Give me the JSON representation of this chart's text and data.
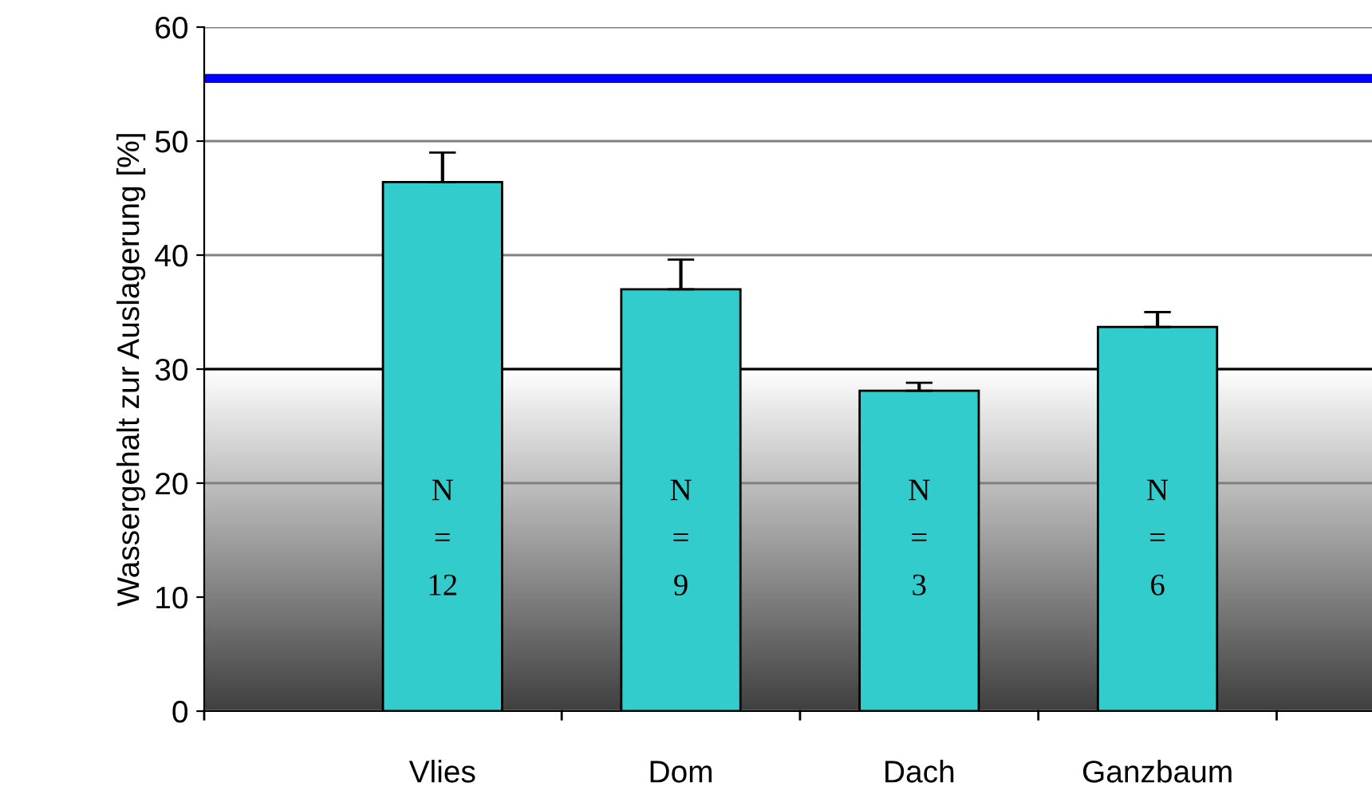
{
  "chart_data": {
    "type": "bar",
    "ylabel": "Wassergehalt zur Auslagerung [%]",
    "categories": [
      "Vlies",
      "Dom",
      "Dach",
      "Ganzbaum"
    ],
    "values": [
      46.4,
      37.0,
      28.1,
      33.7
    ],
    "color": "#33cccc",
    "errors": [
      [
        46.4,
        49.0
      ],
      [
        37.0,
        39.6
      ],
      [
        28.1,
        28.8
      ],
      [
        33.7,
        35.0
      ]
    ],
    "ylim": [
      0,
      60
    ],
    "yticks": [
      0,
      10,
      20,
      30,
      40,
      50,
      60
    ],
    "grid": "y",
    "legend": false,
    "ref_lines": [
      {
        "axis": "y",
        "value": 55.5,
        "color": "#0000ff"
      },
      {
        "axis": "y",
        "value": 30,
        "color": "#000000"
      }
    ],
    "bands": [
      {
        "axis": "y",
        "from": 0,
        "to": 30,
        "color": "#404040"
      }
    ],
    "annotations": [
      "N\n=\n12",
      "N\n=\n9",
      "N\n=\n3",
      "N\n=\n6"
    ]
  }
}
